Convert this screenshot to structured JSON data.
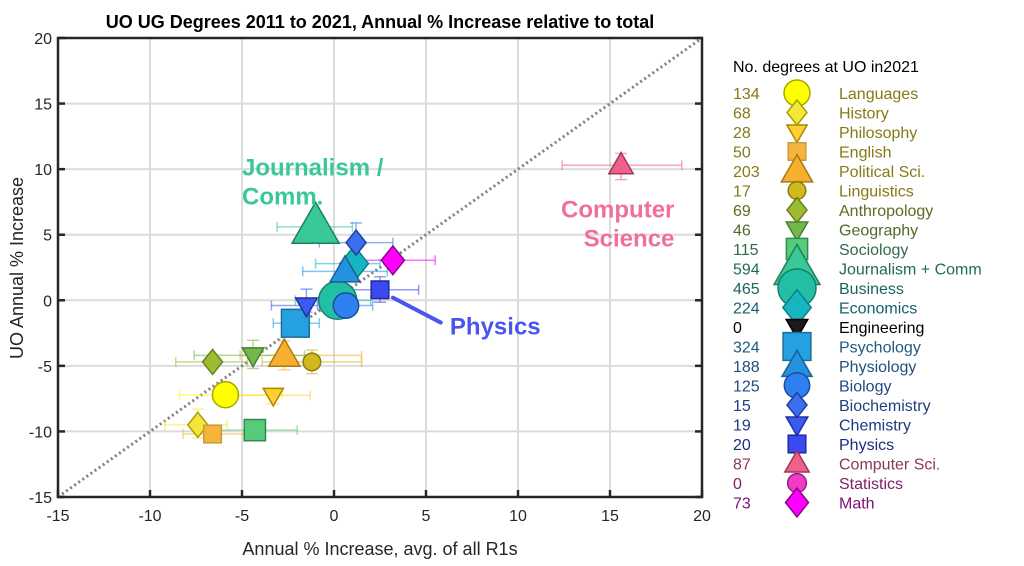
{
  "chart_data": {
    "type": "scatter",
    "title": "UO UG Degrees 2011 to 2021, Annual % Increase relative to total",
    "xlabel": "Annual % Increase, avg. of all R1s",
    "ylabel": "UO Annual % Increase",
    "xlim": [
      -15,
      20
    ],
    "ylim": [
      -15,
      20
    ],
    "xticks": [
      -15,
      -10,
      -5,
      0,
      5,
      10,
      15,
      20
    ],
    "yticks": [
      -15,
      -10,
      -5,
      0,
      5,
      10,
      15,
      20
    ],
    "grid": true,
    "reference_line": {
      "type": "y=x",
      "style": "dotted",
      "color": "#808080"
    },
    "legend": {
      "title": "No. degrees at UO in2021",
      "placement": "outside-right"
    },
    "series": [
      {
        "name": "Languages",
        "count": 134,
        "marker": "circle",
        "size": 3,
        "fill": "#ffff00",
        "edge": "#a8a800",
        "text": "#857a14",
        "x": -5.9,
        "y": -7.2,
        "xerr": [
          -8.4,
          -2.8
        ],
        "yerr": [
          -6.9,
          -7.5
        ]
      },
      {
        "name": "History",
        "count": 68,
        "marker": "diamond",
        "size": 2,
        "fill": "#f5e63a",
        "edge": "#a8a000",
        "text": "#857a14",
        "x": -7.4,
        "y": -9.5,
        "xerr": [
          -9.2,
          -5.8
        ],
        "yerr": [
          -8.3,
          -10.5
        ]
      },
      {
        "name": "Philosophy",
        "count": 28,
        "marker": "triangle-down",
        "size": 1.6,
        "fill": "#ffcf33",
        "edge": "#a88a00",
        "text": "#857a14",
        "x": -3.3,
        "y": -7.25,
        "xerr": [
          -5.3,
          -1.3
        ],
        "yerr": [
          -6.7,
          -7.9
        ]
      },
      {
        "name": "English",
        "count": 50,
        "marker": "square",
        "size": 1.6,
        "fill": "#f5b43a",
        "edge": "#c89a40",
        "text": "#857a14",
        "x": -6.6,
        "y": -10.2,
        "xerr": [
          -8.2,
          -4.9
        ],
        "yerr": [
          -9.8,
          -10.6
        ]
      },
      {
        "name": "Political Sci.",
        "count": 203,
        "marker": "triangle-up",
        "size": 3.2,
        "fill": "#f5b030",
        "edge": "#a87a10",
        "text": "#857a14",
        "x": -2.7,
        "y": -4.2,
        "xerr": [
          -5.1,
          1.5
        ],
        "yerr": [
          -3.1,
          -5.3
        ]
      },
      {
        "name": "Linguistics",
        "count": 17,
        "marker": "circle",
        "size": 1.6,
        "fill": "#d1b81f",
        "edge": "#8a7a10",
        "text": "#857a14",
        "x": -1.2,
        "y": -4.7,
        "xerr": [
          -3.9,
          1.5
        ],
        "yerr": [
          -3.8,
          -5.6
        ]
      },
      {
        "name": "Anthropology",
        "count": 69,
        "marker": "diamond",
        "size": 2,
        "fill": "#9dbb33",
        "edge": "#6b7f20",
        "text": "#5f6b1e",
        "x": -6.6,
        "y": -4.7,
        "xerr": [
          -8.6,
          -4.7
        ],
        "yerr": [
          -4.2,
          -5.2
        ]
      },
      {
        "name": "Geography",
        "count": 46,
        "marker": "triangle-down",
        "size": 1.8,
        "fill": "#73b84a",
        "edge": "#4a7f30",
        "text": "#4e6b2a",
        "x": -4.4,
        "y": -4.2,
        "xerr": [
          -7.6,
          -1.6
        ],
        "yerr": [
          -3.05,
          -5.2
        ]
      },
      {
        "name": "Sociology",
        "count": 115,
        "marker": "square",
        "size": 2.2,
        "fill": "#56cc7a",
        "edge": "#2f8a50",
        "text": "#2f6b4a",
        "x": -4.3,
        "y": -9.9,
        "xerr": [
          -6.3,
          -2.0
        ],
        "yerr": [
          -9.2,
          -10.6
        ]
      },
      {
        "name": "Journalism + Comm",
        "count": 594,
        "marker": "triangle-up",
        "size": 5.5,
        "fill": "#3ac896",
        "edge": "#1f7f5f",
        "text": "#1f6b58",
        "x": -1.0,
        "y": 5.6,
        "xerr": [
          -3.1,
          1.0
        ],
        "yerr": [
          5.6,
          5.6
        ]
      },
      {
        "name": "Business",
        "count": 465,
        "marker": "circle",
        "size": 5,
        "fill": "#22bfa5",
        "edge": "#157f6e",
        "text": "#18665c",
        "x": 0.2,
        "y": 0.0,
        "xerr": [
          -2.1,
          2.0
        ],
        "yerr": [
          0.0,
          0.0
        ]
      },
      {
        "name": "Economics",
        "count": 224,
        "marker": "diamond",
        "size": 3.4,
        "fill": "#16b5c0",
        "edge": "#0d7f88",
        "text": "#145f6b",
        "x": 1.1,
        "y": 2.8,
        "xerr": [
          -1.0,
          2.5
        ],
        "yerr": [
          2.3,
          3.5
        ]
      },
      {
        "name": "Engineering",
        "count": 0,
        "marker": "triangle-down",
        "size": 1.8,
        "fill": "#1a1a1a",
        "edge": "#000000",
        "text": "#000000",
        "x": null,
        "y": null,
        "xerr": null,
        "yerr": null
      },
      {
        "name": "Psychology",
        "count": 324,
        "marker": "square",
        "size": 3.3,
        "fill": "#25a0e0",
        "edge": "#1a6f9a",
        "text": "#1f5a80",
        "x": -2.1,
        "y": -1.75,
        "xerr": [
          -3.3,
          -0.8
        ],
        "yerr": [
          -1.75,
          -1.75
        ]
      },
      {
        "name": "Physiology",
        "count": 188,
        "marker": "triangle-up",
        "size": 3,
        "fill": "#2592e0",
        "edge": "#1a5f9a",
        "text": "#1f5080",
        "x": 0.6,
        "y": 2.2,
        "xerr": [
          -1.7,
          2.9
        ],
        "yerr": [
          1.6,
          2.8
        ]
      },
      {
        "name": "Biology",
        "count": 125,
        "marker": "circle",
        "size": 2.9,
        "fill": "#2f80f0",
        "edge": "#1a4f9a",
        "text": "#1f4a80",
        "x": 0.65,
        "y": -0.4,
        "xerr": [
          -0.8,
          2.1
        ],
        "yerr": [
          -0.4,
          -0.4
        ]
      },
      {
        "name": "Biochemistry",
        "count": 15,
        "marker": "diamond",
        "size": 2,
        "fill": "#3a70f0",
        "edge": "#1f40a0",
        "text": "#1f3f80",
        "x": 1.2,
        "y": 4.4,
        "xerr": [
          -0.8,
          3.2
        ],
        "yerr": [
          3.2,
          5.9
        ]
      },
      {
        "name": "Chemistry",
        "count": 19,
        "marker": "triangle-down",
        "size": 1.8,
        "fill": "#3a5af0",
        "edge": "#1f30a0",
        "text": "#203880",
        "x": -1.5,
        "y": -0.4,
        "xerr": [
          -3.4,
          -0.9
        ],
        "yerr": [
          0.85,
          -0.9
        ]
      },
      {
        "name": "Physics",
        "count": 20,
        "marker": "square",
        "size": 1.6,
        "fill": "#3a4af0",
        "edge": "#1f2aa0",
        "text": "#1f2a80",
        "x": 2.5,
        "y": 0.8,
        "xerr": [
          0.3,
          4.6
        ],
        "yerr": [
          1.8,
          -0.15
        ]
      },
      {
        "name": "Computer Sci.",
        "count": 87,
        "marker": "triangle-up",
        "size": 2.2,
        "fill": "#f0608a",
        "edge": "#9a3a5a",
        "text": "#8a3a55",
        "x": 15.6,
        "y": 10.3,
        "xerr": [
          12.4,
          18.9
        ],
        "yerr": [
          9.2,
          11.2
        ]
      },
      {
        "name": "Statistics",
        "count": 0,
        "marker": "circle",
        "size": 1.8,
        "fill": "#f03ac8",
        "edge": "#9a1f80",
        "text": "#80206b",
        "x": null,
        "y": null,
        "xerr": null,
        "yerr": null
      },
      {
        "name": "Math",
        "count": 73,
        "marker": "diamond",
        "size": 2.5,
        "fill": "#ff00ff",
        "edge": "#8a008a",
        "text": "#80107a",
        "x": 3.2,
        "y": 3.05,
        "xerr": [
          1.0,
          5.5
        ],
        "yerr": [
          2.5,
          3.6
        ]
      }
    ],
    "annotations": [
      {
        "text_lines": [
          "Journalism /",
          "Comm."
        ],
        "color": "#3ac896",
        "x": -5.0,
        "y": 9.5,
        "anchor": "start"
      },
      {
        "text_lines": [
          "Computer",
          "Science"
        ],
        "color": "#f0709a",
        "x": 18.5,
        "y": 6.3,
        "anchor": "end"
      },
      {
        "text_lines": [
          "Physics"
        ],
        "color": "#4a55ee",
        "x": 6.3,
        "y": -2.6,
        "anchor": "start",
        "arrow_from": [
          3.2,
          0.2
        ],
        "arrow_to": [
          5.8,
          -1.7
        ]
      }
    ]
  }
}
